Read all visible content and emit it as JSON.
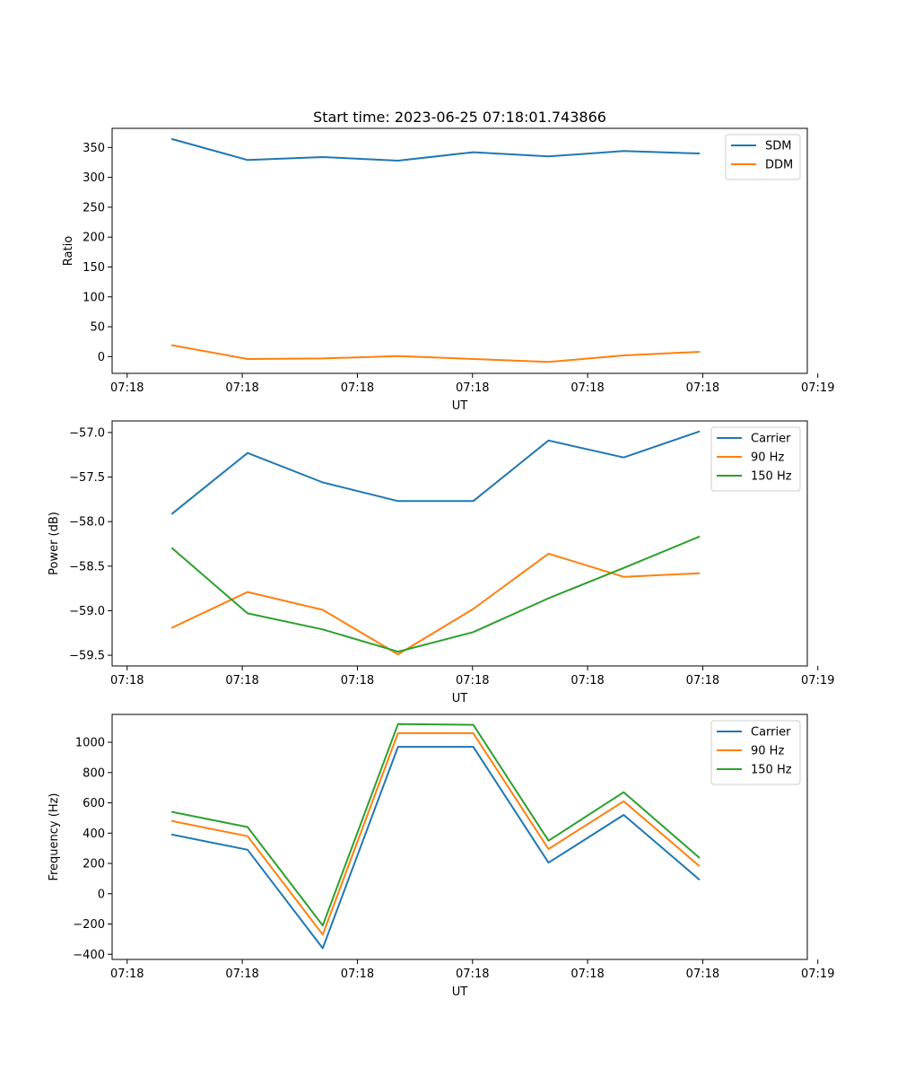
{
  "figure": {
    "title": "Start time: 2023-06-25 07:18:01.743866"
  },
  "colors": {
    "blue": "#1f77b4",
    "orange": "#ff7f0e",
    "green": "#2ca02c"
  },
  "chart_data": [
    {
      "type": "line",
      "title": "Start time: 2023-06-25 07:18:01.743866",
      "xlabel": "UT",
      "ylabel": "Ratio",
      "x": [
        1,
        2,
        3,
        4,
        5,
        6,
        7,
        8
      ],
      "xlim": [
        0.2,
        9.44
      ],
      "x_ticks": [
        0.4,
        1.93,
        3.46,
        4.99,
        6.52,
        8.05,
        9.58
      ],
      "x_tick_labels": [
        "07:18",
        "07:18",
        "07:18",
        "07:18",
        "07:18",
        "07:18",
        "07:19"
      ],
      "ylim": [
        -28,
        382
      ],
      "y_ticks": [
        0,
        50,
        100,
        150,
        200,
        250,
        300,
        350
      ],
      "y_tick_labels": [
        "0",
        "50",
        "100",
        "150",
        "200",
        "250",
        "300",
        "350"
      ],
      "legend_position": "top-right",
      "grid": false,
      "series": [
        {
          "name": "SDM",
          "color": "#1f77b4",
          "values": [
            364,
            329,
            334,
            328,
            342,
            335,
            344,
            340
          ]
        },
        {
          "name": "DDM",
          "color": "#ff7f0e",
          "values": [
            19,
            -4,
            -3,
            1,
            -4,
            -9,
            2,
            8
          ]
        }
      ]
    },
    {
      "type": "line",
      "title": "",
      "xlabel": "UT",
      "ylabel": "Power (dB)",
      "x": [
        1,
        2,
        3,
        4,
        5,
        6,
        7,
        8
      ],
      "xlim": [
        0.2,
        9.44
      ],
      "x_ticks": [
        0.4,
        1.93,
        3.46,
        4.99,
        6.52,
        8.05,
        9.58
      ],
      "x_tick_labels": [
        "07:18",
        "07:18",
        "07:18",
        "07:18",
        "07:18",
        "07:18",
        "07:19"
      ],
      "ylim": [
        -59.62,
        -56.87
      ],
      "y_ticks": [
        -59.5,
        -59.0,
        -58.5,
        -58.0,
        -57.5,
        -57.0
      ],
      "y_tick_labels": [
        "−59.5",
        "−59.0",
        "−58.5",
        "−58.0",
        "−57.5",
        "−57.0"
      ],
      "legend_position": "top-right",
      "grid": false,
      "series": [
        {
          "name": "Carrier",
          "color": "#1f77b4",
          "values": [
            -57.91,
            -57.23,
            -57.56,
            -57.77,
            -57.77,
            -57.09,
            -57.28,
            -56.99
          ]
        },
        {
          "name": "90 Hz",
          "color": "#ff7f0e",
          "values": [
            -59.19,
            -58.79,
            -58.99,
            -59.49,
            -58.98,
            -58.36,
            -58.62,
            -58.58
          ]
        },
        {
          "name": "150 Hz",
          "color": "#2ca02c",
          "values": [
            -58.3,
            -59.03,
            -59.21,
            -59.46,
            -59.24,
            -58.86,
            -58.52,
            -58.17
          ]
        }
      ]
    },
    {
      "type": "line",
      "title": "",
      "xlabel": "UT",
      "ylabel": "Frequency (Hz)",
      "x": [
        1,
        2,
        3,
        4,
        5,
        6,
        7,
        8
      ],
      "xlim": [
        0.2,
        9.44
      ],
      "x_ticks": [
        0.4,
        1.93,
        3.46,
        4.99,
        6.52,
        8.05,
        9.58
      ],
      "x_tick_labels": [
        "07:18",
        "07:18",
        "07:18",
        "07:18",
        "07:18",
        "07:18",
        "07:19"
      ],
      "ylim": [
        -434,
        1184
      ],
      "y_ticks": [
        -400,
        -200,
        0,
        200,
        400,
        600,
        800,
        1000
      ],
      "y_tick_labels": [
        "−400",
        "−200",
        "0",
        "200",
        "400",
        "600",
        "800",
        "1000"
      ],
      "legend_position": "top-right",
      "grid": false,
      "series": [
        {
          "name": "Carrier",
          "color": "#1f77b4",
          "values": [
            390,
            290,
            -360,
            970,
            970,
            205,
            520,
            95
          ]
        },
        {
          "name": "90 Hz",
          "color": "#ff7f0e",
          "values": [
            480,
            380,
            -270,
            1060,
            1060,
            295,
            610,
            185
          ]
        },
        {
          "name": "150 Hz",
          "color": "#2ca02c",
          "values": [
            540,
            440,
            -210,
            1120,
            1115,
            350,
            670,
            240
          ]
        }
      ]
    }
  ]
}
